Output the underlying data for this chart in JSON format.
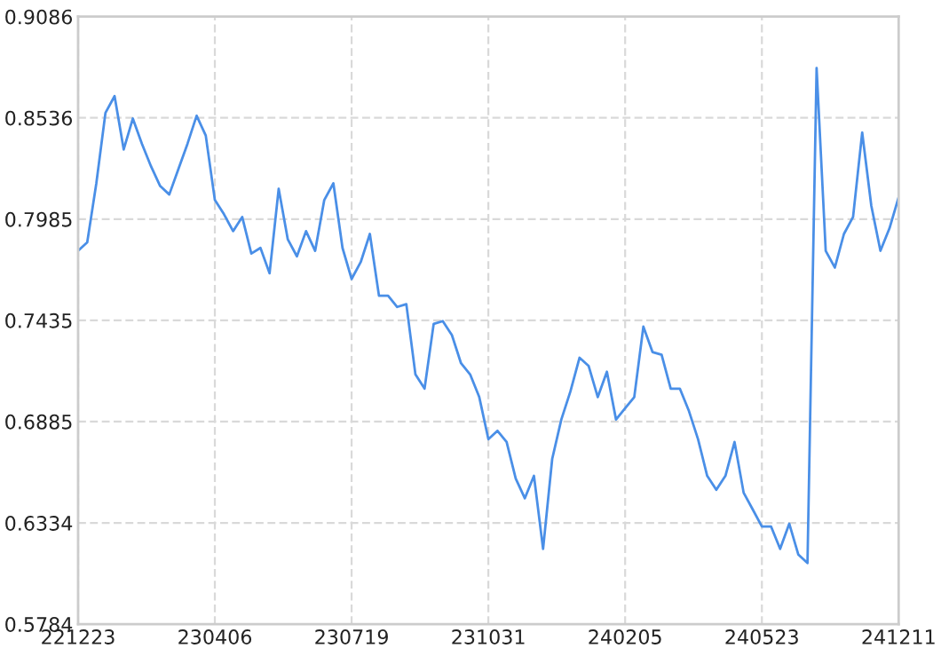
{
  "chart_data": {
    "type": "line",
    "categories": [
      "221223",
      null,
      null,
      null,
      null,
      null,
      null,
      null,
      null,
      null,
      null,
      null,
      null,
      null,
      null,
      "230406",
      null,
      null,
      null,
      null,
      null,
      null,
      null,
      null,
      null,
      null,
      null,
      null,
      null,
      null,
      "230719",
      null,
      null,
      null,
      null,
      null,
      null,
      null,
      null,
      null,
      null,
      null,
      null,
      null,
      null,
      "231031",
      null,
      null,
      null,
      null,
      null,
      null,
      null,
      null,
      null,
      null,
      null,
      null,
      null,
      null,
      "240205",
      null,
      null,
      null,
      null,
      null,
      null,
      null,
      null,
      null,
      null,
      null,
      null,
      null,
      null,
      "240523",
      null,
      null,
      null,
      null,
      null,
      null,
      null,
      null,
      null,
      null,
      null,
      null,
      null,
      null,
      "241211"
    ],
    "series": [
      {
        "color": "#4a8fe7",
        "values": [
          0.7813,
          0.7859,
          0.818,
          0.8563,
          0.8654,
          0.8364,
          0.8532,
          0.8395,
          0.8272,
          0.8165,
          0.8119,
          0.8257,
          0.8395,
          0.8547,
          0.844,
          0.8089,
          0.8012,
          0.792,
          0.7997,
          0.7798,
          0.7829,
          0.7691,
          0.815,
          0.7875,
          0.7783,
          0.792,
          0.7813,
          0.8089,
          0.818,
          0.7829,
          0.766,
          0.7752,
          0.7905,
          0.7569,
          0.7569,
          0.7508,
          0.7523,
          0.7141,
          0.7064,
          0.7416,
          0.7431,
          0.7355,
          0.7202,
          0.7141,
          0.7018,
          0.6789,
          0.6835,
          0.6774,
          0.6575,
          0.6468,
          0.659,
          0.6193,
          0.6682,
          0.6896,
          0.7049,
          0.7232,
          0.7187,
          0.7018,
          0.7156,
          0.6896,
          0.6957,
          0.7018,
          0.7401,
          0.7263,
          0.7248,
          0.7064,
          0.7064,
          0.6942,
          0.6789,
          0.659,
          0.6514,
          0.659,
          0.6774,
          0.6498,
          0.6407,
          0.6315,
          0.6315,
          0.6193,
          0.633,
          0.6162,
          0.6116,
          0.8807,
          0.7813,
          0.7722,
          0.7905,
          0.7997,
          0.8456,
          0.8058,
          0.7813,
          0.7936,
          0.8104
        ]
      }
    ],
    "ylim": [
      0.5784,
      0.9086
    ],
    "yticks": [
      0.5784,
      0.6334,
      0.6885,
      0.7435,
      0.7985,
      0.8536,
      0.9086
    ],
    "grid": true,
    "legend": false,
    "marker": "none",
    "line_style": "solid"
  }
}
